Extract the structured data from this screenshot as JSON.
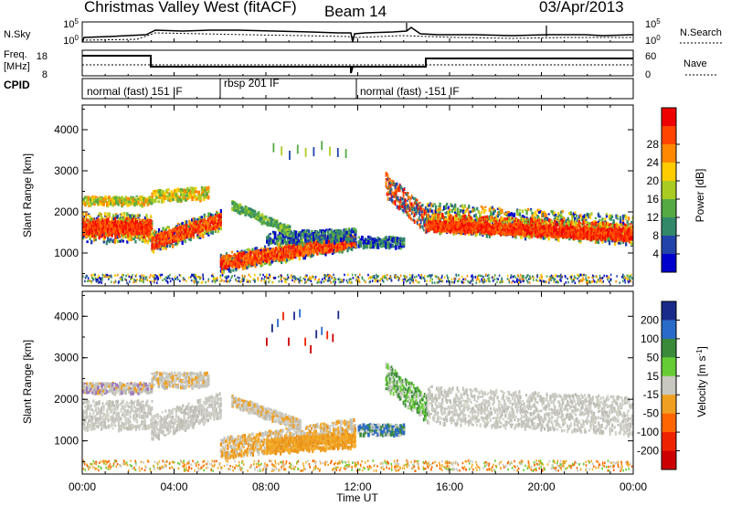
{
  "header": {
    "title": "Christmas Valley West (fitACF)",
    "beam": "Beam 14",
    "date": "03/Apr/2013"
  },
  "noise_panel": {
    "left_label": "N.Sky",
    "right_label": "N.Search",
    "ticks_left": [
      "10^5",
      "10^0"
    ],
    "ticks_right": [
      "10^5",
      "10^0"
    ]
  },
  "freq_panel": {
    "left_label_1": "Freq.",
    "left_label_2": "[MHz]",
    "ticks_left": [
      "18",
      "8"
    ],
    "ticks_right": [
      "60",
      "0"
    ],
    "right_label": "Nave"
  },
  "cpid_panel": {
    "label": "CPID",
    "segments": [
      {
        "label": "normal (fast) 151 IF",
        "start_hour": 0,
        "end_hour": 6
      },
      {
        "label": "rbsp 201 IF",
        "start_hour": 6,
        "end_hour": 11.95
      },
      {
        "label": "normal (fast) -151 IF",
        "start_hour": 12,
        "end_hour": 24
      }
    ]
  },
  "time_axis": {
    "label": "Time UT",
    "ticks": [
      "00:00",
      "04:00",
      "08:00",
      "12:00",
      "16:00",
      "20:00",
      "00:00"
    ]
  },
  "chart_data": [
    {
      "type": "heatmap",
      "parameter": "power",
      "xlabel": "Time UT",
      "ylabel": "Slant Range [km]",
      "xlim": [
        0,
        24
      ],
      "ylim": [
        200,
        4600
      ],
      "yticks": [
        "1000",
        "2000",
        "3000",
        "4000"
      ],
      "colorbar": {
        "label": "Power [dB]",
        "ticks": [
          "4",
          "8",
          "12",
          "16",
          "20",
          "24",
          "28"
        ],
        "colors": [
          "#0000cc",
          "#2244aa",
          "#33886a",
          "#55aa44",
          "#aacc22",
          "#ffcc00",
          "#ff8800",
          "#ff4400",
          "#ee0000"
        ]
      },
      "features": [
        {
          "t_start": 0,
          "t_end": 3,
          "r_center": 1650,
          "r_width": 350,
          "level": "high"
        },
        {
          "t_start": 3,
          "t_end": 6,
          "r_center": 1400,
          "r_width": 300,
          "level": "high"
        },
        {
          "t_start": 6,
          "t_end": 11.9,
          "r_center": 1000,
          "r_width": 400,
          "level": "high"
        },
        {
          "t_start": 15,
          "t_end": 24,
          "r_center": 1700,
          "r_width": 400,
          "level": "high"
        }
      ]
    },
    {
      "type": "heatmap",
      "parameter": "velocity",
      "xlabel": "Time UT",
      "ylabel": "Slant Range [km]",
      "xlim": [
        0,
        24
      ],
      "ylim": [
        200,
        4600
      ],
      "yticks": [
        "1000",
        "2000",
        "3000",
        "4000"
      ],
      "colorbar": {
        "label": "Velocity [m s^-1]",
        "ticks": [
          "200",
          "100",
          "50",
          "15",
          "-15",
          "-50",
          "-100",
          "-200"
        ],
        "colors": [
          "#1a2a8a",
          "#2a6ac8",
          "#3a8a3a",
          "#66cc33",
          "#c8c8c0",
          "#f0a020",
          "#ff6600",
          "#ee2200",
          "#cc0000"
        ]
      },
      "features": [
        {
          "t_start": 0,
          "t_end": 6,
          "r_center": 1700,
          "r_width": 500,
          "level": "gray"
        },
        {
          "t_start": 6,
          "t_end": 11.9,
          "r_center": 900,
          "r_width": 400,
          "level": "orange"
        },
        {
          "t_start": 15,
          "t_end": 24,
          "r_center": 1800,
          "r_width": 600,
          "level": "gray"
        }
      ]
    }
  ]
}
